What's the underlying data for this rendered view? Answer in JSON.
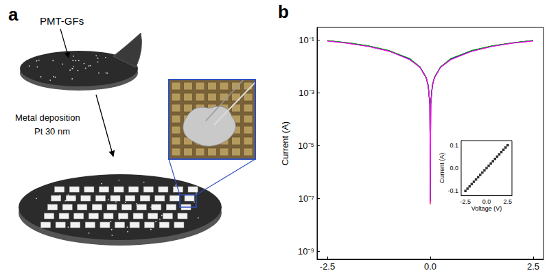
{
  "panel_a": {
    "label": "a",
    "texts": {
      "film": "PMT-GFs",
      "step": "Metal deposition",
      "metal": "Pt 30 nm"
    }
  },
  "panel_b": {
    "label": "b"
  },
  "chart_data": [
    {
      "type": "line",
      "y_label": "Current (A)",
      "x": [
        -2.5,
        -2.0,
        -1.5,
        -1.0,
        -0.5,
        -0.25,
        -0.1,
        -0.05,
        -0.01,
        0,
        0.01,
        0.05,
        0.1,
        0.25,
        0.5,
        1.0,
        1.5,
        2.0,
        2.5
      ],
      "series": [
        {
          "color": "#000000",
          "values": [
            0.095,
            0.078,
            0.059,
            0.039,
            0.019,
            0.0095,
            0.0038,
            0.0019,
            0.00038,
            8e-08,
            0.00038,
            0.0019,
            0.0038,
            0.0095,
            0.019,
            0.039,
            0.059,
            0.078,
            0.095
          ]
        },
        {
          "color": "#ff0000",
          "values": [
            0.093,
            0.076,
            0.058,
            0.038,
            0.019,
            0.0093,
            0.0037,
            0.0018,
            0.00036,
            6e-08,
            0.00037,
            0.0019,
            0.0037,
            0.0094,
            0.019,
            0.038,
            0.058,
            0.077,
            0.094
          ]
        },
        {
          "color": "#0000ff",
          "values": [
            0.094,
            0.077,
            0.058,
            0.039,
            0.019,
            0.0094,
            0.0038,
            0.0019,
            0.00037,
            1e-07,
            0.00038,
            0.0019,
            0.0038,
            0.0095,
            0.019,
            0.039,
            0.059,
            0.078,
            0.096
          ]
        },
        {
          "color": "#00a000",
          "values": [
            0.096,
            0.079,
            0.06,
            0.04,
            0.02,
            0.0096,
            0.0039,
            0.0019,
            0.00039,
            9e-08,
            0.00039,
            0.002,
            0.0039,
            0.0096,
            0.02,
            0.04,
            0.06,
            0.079,
            0.097
          ]
        },
        {
          "color": "#ff00ff",
          "values": [
            0.092,
            0.075,
            0.057,
            0.038,
            0.018,
            0.0092,
            0.0037,
            0.0018,
            0.00036,
            7e-08,
            0.00036,
            0.0018,
            0.0037,
            0.0092,
            0.018,
            0.037,
            0.057,
            0.076,
            0.093
          ]
        }
      ],
      "xlim": [
        -2.75,
        2.75
      ],
      "xticks": [
        -2.5,
        {
          "value": 0,
          "label": "0.0"
        },
        2.5
      ],
      "ylim": [
        5e-10,
        0.3
      ],
      "yticks": [
        {
          "value": 1e-09,
          "label": "10⁻⁹"
        },
        {
          "value": 1e-07,
          "label": "10⁻⁷"
        },
        {
          "value": 1e-05,
          "label": "10⁻⁵"
        },
        {
          "value": 0.001,
          "label": "10⁻³"
        },
        {
          "value": 0.1,
          "label": "10⁻¹"
        }
      ],
      "log": "y",
      "grid": false
    },
    {
      "type": "scatter",
      "x_label": "Voltage (V)",
      "y_label": "Current (A)",
      "x": [
        -2.5,
        -2.25,
        -2.0,
        -1.75,
        -1.5,
        -1.25,
        -1.0,
        -0.75,
        -0.5,
        -0.25,
        0,
        0.25,
        0.5,
        0.75,
        1.0,
        1.25,
        1.5,
        1.75,
        2.0,
        2.25,
        2.5
      ],
      "values": [
        -0.1,
        -0.09,
        -0.08,
        -0.07,
        -0.06,
        -0.05,
        -0.04,
        -0.03,
        -0.02,
        -0.01,
        0,
        0.01,
        0.02,
        0.03,
        0.04,
        0.05,
        0.06,
        0.07,
        0.08,
        0.09,
        0.1
      ],
      "color": "#000000",
      "marker": "square",
      "xlim": [
        -3,
        3
      ],
      "xticks": [
        -2.5,
        {
          "value": 0,
          "label": "0.0"
        },
        2.5
      ],
      "ylim": [
        -0.12,
        0.12
      ],
      "yticks": [
        -0.1,
        {
          "value": 0,
          "label": "0.0"
        },
        0.1
      ],
      "grid": false
    }
  ]
}
